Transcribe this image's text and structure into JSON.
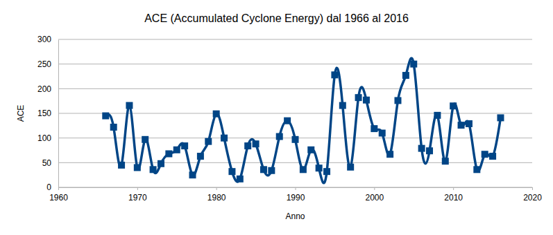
{
  "chart_data": {
    "type": "line",
    "title": "ACE (Accumulated Cyclone Energy) dal 1966 al 2016",
    "x_label": "Anno",
    "y_label": "ACE",
    "x": [
      1966,
      1967,
      1968,
      1969,
      1970,
      1971,
      1972,
      1973,
      1974,
      1975,
      1976,
      1977,
      1978,
      1979,
      1980,
      1981,
      1982,
      1983,
      1984,
      1985,
      1986,
      1987,
      1988,
      1989,
      1990,
      1991,
      1992,
      1993,
      1994,
      1995,
      1996,
      1997,
      1998,
      1999,
      2000,
      2001,
      2002,
      2003,
      2004,
      2005,
      2006,
      2007,
      2008,
      2009,
      2010,
      2011,
      2012,
      2013,
      2014,
      2015,
      2016
    ],
    "values": [
      145,
      122,
      45,
      166,
      40,
      97,
      36,
      48,
      68,
      76,
      84,
      25,
      63,
      93,
      149,
      100,
      32,
      17,
      84,
      88,
      36,
      34,
      103,
      135,
      97,
      36,
      76,
      39,
      32,
      228,
      166,
      41,
      182,
      177,
      119,
      110,
      67,
      176,
      227,
      250,
      79,
      74,
      146,
      53,
      165,
      126,
      129,
      36,
      67,
      63,
      141
    ],
    "color": "#004586",
    "marker": "square",
    "xlim": [
      1960,
      2020
    ],
    "xticks": [
      1960,
      1970,
      1980,
      1990,
      2000,
      2010,
      2020
    ],
    "ylim": [
      0,
      300
    ],
    "yticks": [
      0,
      50,
      100,
      150,
      200,
      250,
      300
    ],
    "grid": true
  }
}
